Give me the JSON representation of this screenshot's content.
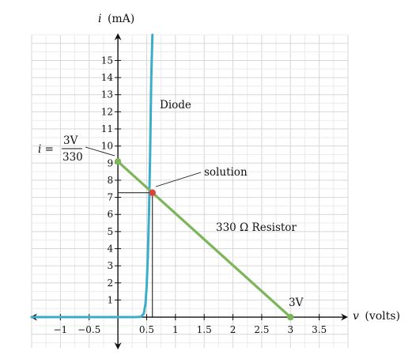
{
  "chart_data": {
    "type": "line",
    "xlabel": "v (volts)",
    "ylabel": "i (mA)",
    "xlim": [
      -1.5,
      4.0
    ],
    "ylim": [
      -1.8,
      16.5
    ],
    "grid": true,
    "x_ticks": [
      -1,
      -0.5,
      0.5,
      1,
      1.5,
      2,
      2.5,
      3,
      3.5
    ],
    "x_tick_labels": [
      "−1",
      "−0.5",
      "0.5",
      "1",
      "1.5",
      "2",
      "2.5",
      "3",
      "3.5"
    ],
    "y_ticks": [
      1,
      2,
      3,
      4,
      5,
      6,
      7,
      8,
      9,
      10,
      11,
      12,
      13,
      14,
      15
    ],
    "y_tick_labels": [
      "1",
      "2",
      "3",
      "4",
      "5",
      "6",
      "7",
      "8",
      "9",
      "10",
      "11",
      "12",
      "13",
      "14",
      "15"
    ],
    "series": [
      {
        "name": "Diode",
        "color": "#3aaec8",
        "points": [
          [
            -1.5,
            0
          ],
          [
            0.3,
            0
          ],
          [
            0.4,
            0.02
          ],
          [
            0.45,
            0.2
          ],
          [
            0.48,
            0.8
          ],
          [
            0.5,
            1.8
          ],
          [
            0.52,
            3.5
          ],
          [
            0.54,
            6.0
          ],
          [
            0.56,
            9.5
          ],
          [
            0.58,
            14
          ],
          [
            0.6,
            16.5
          ]
        ]
      },
      {
        "name": "330 Ω Resistor",
        "color": "#7cb55a",
        "points": [
          [
            0,
            9.09
          ],
          [
            3,
            0
          ]
        ]
      }
    ],
    "markers": [
      {
        "label": "i = 3V/330",
        "x": 0,
        "y": 9.09,
        "color": "#7cb55a"
      },
      {
        "label": "solution",
        "x": 0.6,
        "y": 7.27,
        "color": "#d9443a"
      },
      {
        "label": "3V",
        "x": 3,
        "y": 0,
        "color": "#7cb55a"
      }
    ],
    "annotations": {
      "diode": "Diode",
      "resistor": "330 Ω Resistor",
      "solution": "solution",
      "three_volts": "3V",
      "intercept_lhs": "i =",
      "intercept_num": "3V",
      "intercept_den": "330"
    },
    "axis_titles": {
      "x_var": "v",
      "x_unit": "(volts)",
      "y_var": "i",
      "y_unit": "(mA)"
    }
  }
}
